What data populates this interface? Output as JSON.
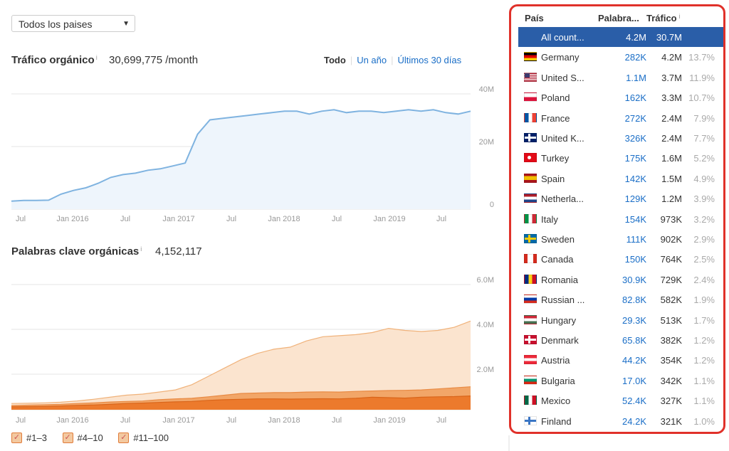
{
  "country_select": {
    "value": "Todos los paises"
  },
  "traffic": {
    "title": "Tráfico orgánico",
    "info": "i",
    "value": "30,699,775 /month",
    "ranges": [
      "Todo",
      "Un año",
      "Últimos 30 días"
    ]
  },
  "keywords": {
    "title": "Palabras clave orgánicas",
    "info": "i",
    "value": "4,152,117"
  },
  "legend": [
    "#1–3",
    "#4–10",
    "#11–100"
  ],
  "table": {
    "col_country": "País",
    "col_keywords": "Palabra...",
    "col_traffic": "Tráfico",
    "info": "i",
    "rows": [
      {
        "name": "All count...",
        "kw": "4.2M",
        "traffic": "30.7M",
        "pct": "",
        "flag": "none"
      },
      {
        "name": "Germany",
        "kw": "282K",
        "traffic": "4.2M",
        "pct": "13.7%",
        "flag": "de"
      },
      {
        "name": "United S...",
        "kw": "1.1M",
        "traffic": "3.7M",
        "pct": "11.9%",
        "flag": "us"
      },
      {
        "name": "Poland",
        "kw": "162K",
        "traffic": "3.3M",
        "pct": "10.7%",
        "flag": "pl"
      },
      {
        "name": "France",
        "kw": "272K",
        "traffic": "2.4M",
        "pct": "7.9%",
        "flag": "fr"
      },
      {
        "name": "United K...",
        "kw": "326K",
        "traffic": "2.4M",
        "pct": "7.7%",
        "flag": "gb"
      },
      {
        "name": "Turkey",
        "kw": "175K",
        "traffic": "1.6M",
        "pct": "5.2%",
        "flag": "tr"
      },
      {
        "name": "Spain",
        "kw": "142K",
        "traffic": "1.5M",
        "pct": "4.9%",
        "flag": "es"
      },
      {
        "name": "Netherla...",
        "kw": "129K",
        "traffic": "1.2M",
        "pct": "3.9%",
        "flag": "nl"
      },
      {
        "name": "Italy",
        "kw": "154K",
        "traffic": "973K",
        "pct": "3.2%",
        "flag": "it"
      },
      {
        "name": "Sweden",
        "kw": "111K",
        "traffic": "902K",
        "pct": "2.9%",
        "flag": "se"
      },
      {
        "name": "Canada",
        "kw": "150K",
        "traffic": "764K",
        "pct": "2.5%",
        "flag": "ca"
      },
      {
        "name": "Romania",
        "kw": "30.9K",
        "traffic": "729K",
        "pct": "2.4%",
        "flag": "ro"
      },
      {
        "name": "Russian ...",
        "kw": "82.8K",
        "traffic": "582K",
        "pct": "1.9%",
        "flag": "ru"
      },
      {
        "name": "Hungary",
        "kw": "29.3K",
        "traffic": "513K",
        "pct": "1.7%",
        "flag": "hu"
      },
      {
        "name": "Denmark",
        "kw": "65.8K",
        "traffic": "382K",
        "pct": "1.2%",
        "flag": "dk"
      },
      {
        "name": "Austria",
        "kw": "44.2K",
        "traffic": "354K",
        "pct": "1.2%",
        "flag": "at"
      },
      {
        "name": "Bulgaria",
        "kw": "17.0K",
        "traffic": "342K",
        "pct": "1.1%",
        "flag": "bg"
      },
      {
        "name": "Mexico",
        "kw": "52.4K",
        "traffic": "327K",
        "pct": "1.1%",
        "flag": "mx"
      },
      {
        "name": "Finland",
        "kw": "24.2K",
        "traffic": "321K",
        "pct": "1.0%",
        "flag": "fi"
      }
    ]
  },
  "chart_data": [
    {
      "type": "area",
      "x_ticks": [
        "Jul",
        "Jan 2016",
        "Jul",
        "Jan 2017",
        "Jul",
        "Jan 2018",
        "Jul",
        "Jan 2019",
        "Jul"
      ],
      "y_ticks": [
        "40M",
        "20M",
        "0"
      ],
      "ylim": [
        0,
        40
      ],
      "series": [
        {
          "values": [
            2.8,
            3.0,
            3.0,
            3.1,
            5.2,
            6.5,
            7.4,
            9.0,
            11.0,
            12.0,
            12.5,
            13.5,
            14.0,
            15.0,
            16.0,
            26.0,
            31.0,
            31.5,
            32.0,
            32.5,
            33.0,
            33.5,
            34.0,
            34.0,
            33.0,
            34.0,
            34.5,
            33.5,
            34.0,
            34.0,
            33.5,
            34.0,
            34.5,
            34.0,
            34.5,
            33.5,
            33.0,
            34.0
          ]
        }
      ],
      "colors": {
        "line": "#7fb3e0",
        "fill": "#eef5fc"
      }
    },
    {
      "type": "area",
      "x_ticks": [
        "Jul",
        "Jan 2016",
        "Jul",
        "Jan 2017",
        "Jul",
        "Jan 2018",
        "Jul",
        "Jan 2019",
        "Jul"
      ],
      "y_ticks": [
        "6.0M",
        "4.0M",
        "2.0M"
      ],
      "ylim": [
        0,
        6.0
      ],
      "series": [
        {
          "values": [
            0.14,
            0.15,
            0.16,
            0.18,
            0.21,
            0.23,
            0.26,
            0.3,
            0.32,
            0.35,
            0.38,
            0.4,
            0.45,
            0.48,
            0.5,
            0.52,
            0.52,
            0.51,
            0.52,
            0.53,
            0.52,
            0.55,
            0.6,
            0.58,
            0.56,
            0.6,
            0.62,
            0.63,
            0.66
          ]
        },
        {
          "values": [
            0.2,
            0.22,
            0.24,
            0.26,
            0.3,
            0.33,
            0.37,
            0.4,
            0.42,
            0.48,
            0.52,
            0.55,
            0.62,
            0.7,
            0.78,
            0.8,
            0.82,
            0.82,
            0.85,
            0.86,
            0.85,
            0.88,
            0.9,
            0.92,
            0.93,
            0.95,
            1.0,
            1.05,
            1.1
          ]
        },
        {
          "values": [
            0.3,
            0.31,
            0.33,
            0.36,
            0.42,
            0.5,
            0.6,
            0.7,
            0.75,
            0.85,
            0.95,
            1.2,
            1.6,
            2.0,
            2.4,
            2.7,
            2.9,
            3.0,
            3.3,
            3.5,
            3.55,
            3.6,
            3.7,
            3.9,
            3.8,
            3.75,
            3.8,
            3.95,
            4.25
          ]
        }
      ],
      "colors": {
        "#1-3": "#ec7a2c",
        "#4-10": "#f2a668",
        "#11-100": "#fbe4cf"
      }
    }
  ]
}
